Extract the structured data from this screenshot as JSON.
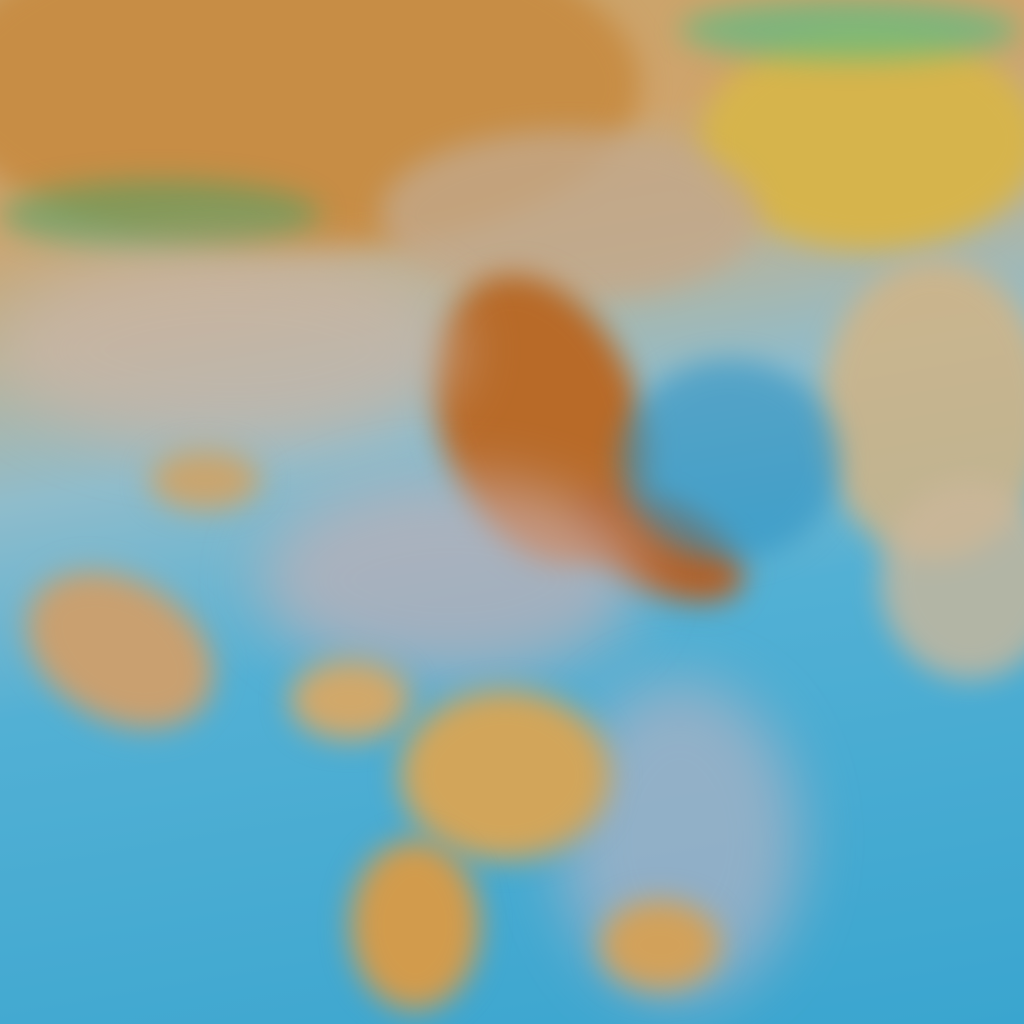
{
  "image": {
    "kind": "false-color satellite imagery",
    "colors": {
      "ocean": "#3aa5cf",
      "land_orange": "#c97a2a",
      "cloud_yellow": "#d9b24a",
      "cloud_pink": "#c9b7b0",
      "edge_green": "#4fd08a"
    }
  }
}
